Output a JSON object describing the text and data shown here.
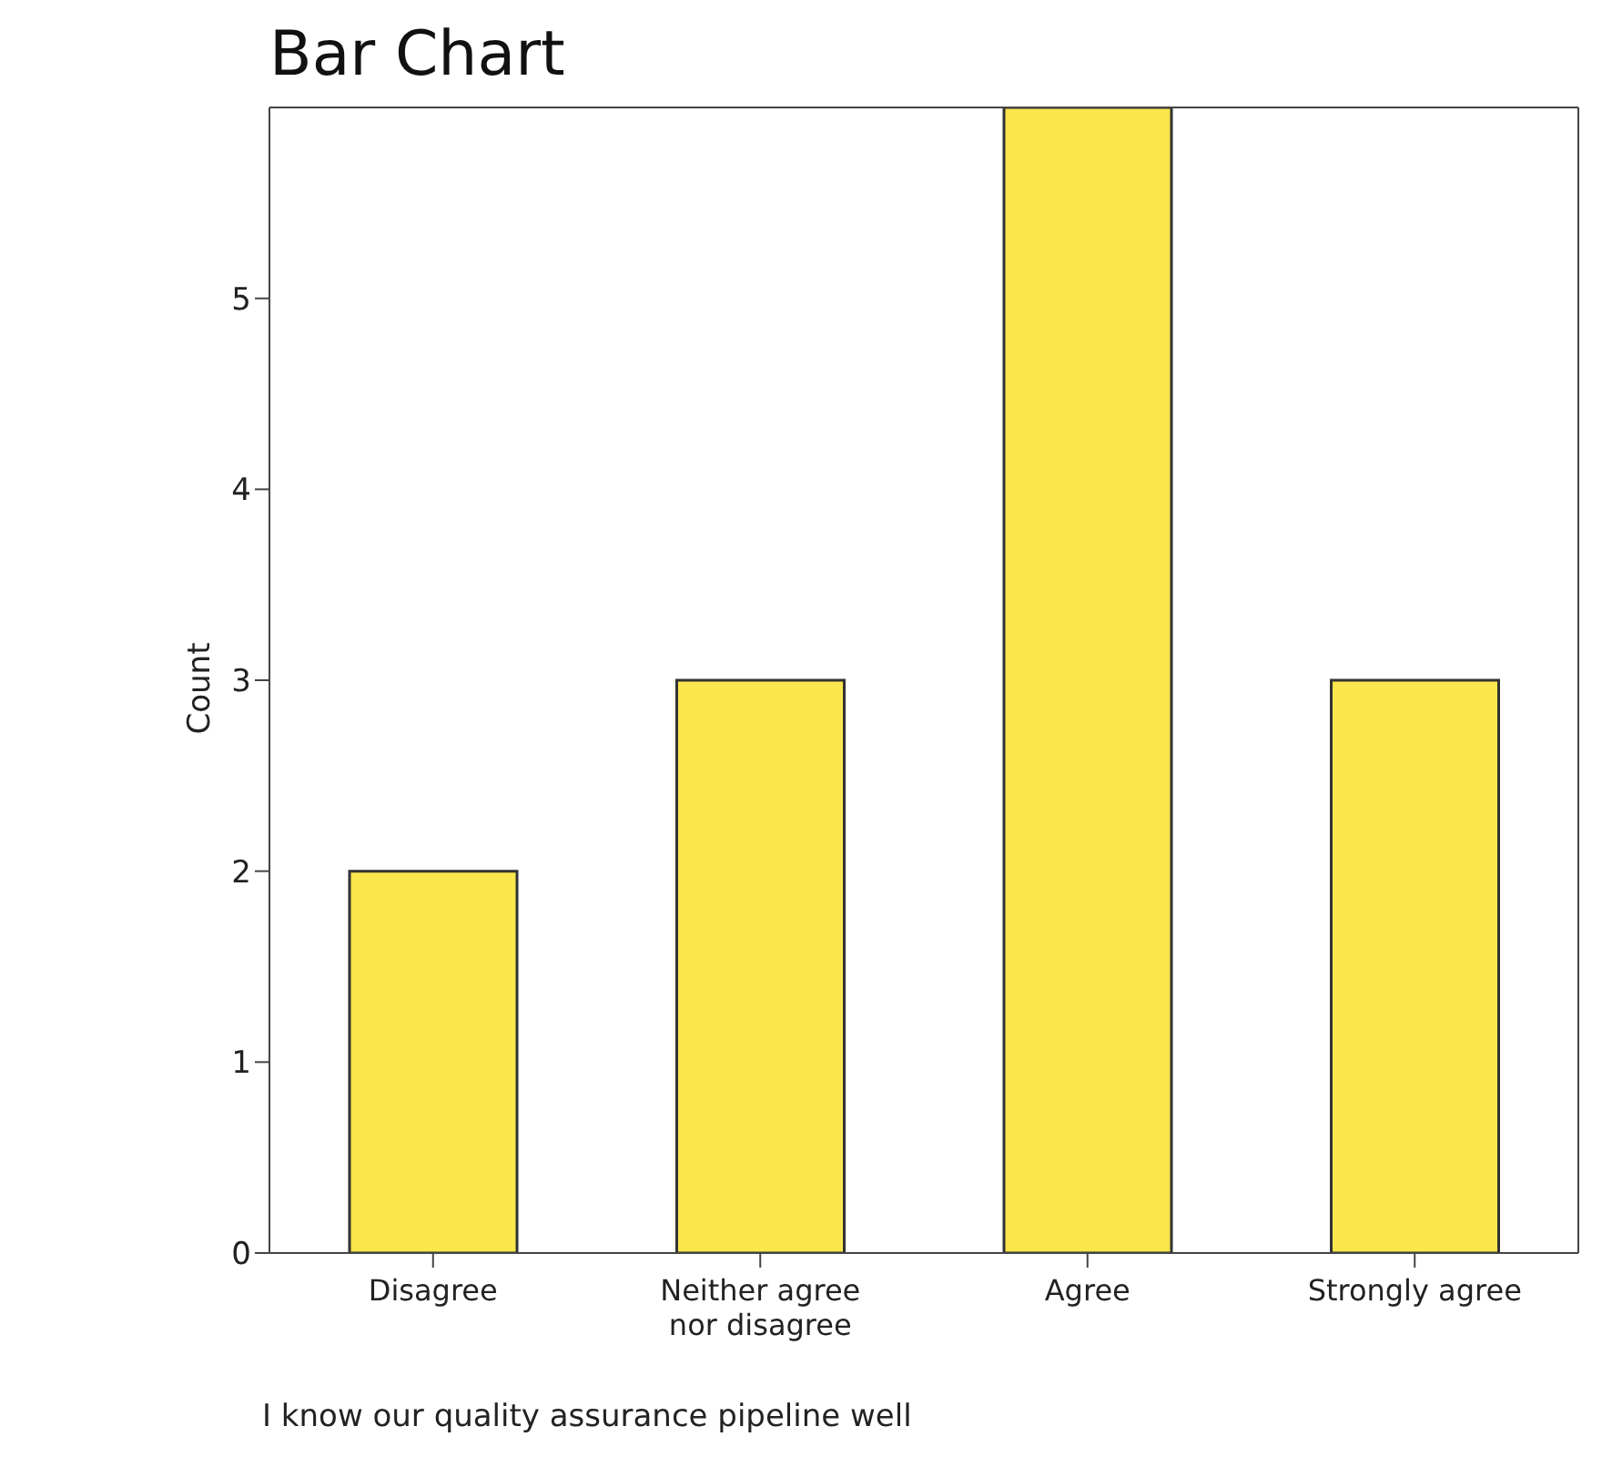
{
  "chart_data": {
    "type": "bar",
    "title": "Bar Chart",
    "xlabel": "I know our quality assurance pipeline well",
    "ylabel": "Count",
    "categories": [
      "Disagree",
      "Neither agree nor disagree",
      "Agree",
      "Strongly agree"
    ],
    "values": [
      2,
      3,
      6,
      3
    ],
    "color": "#fbe64d",
    "ylim": [
      0,
      6
    ],
    "yticks": [
      0,
      1,
      2,
      3,
      4,
      5
    ],
    "grid": false
  }
}
